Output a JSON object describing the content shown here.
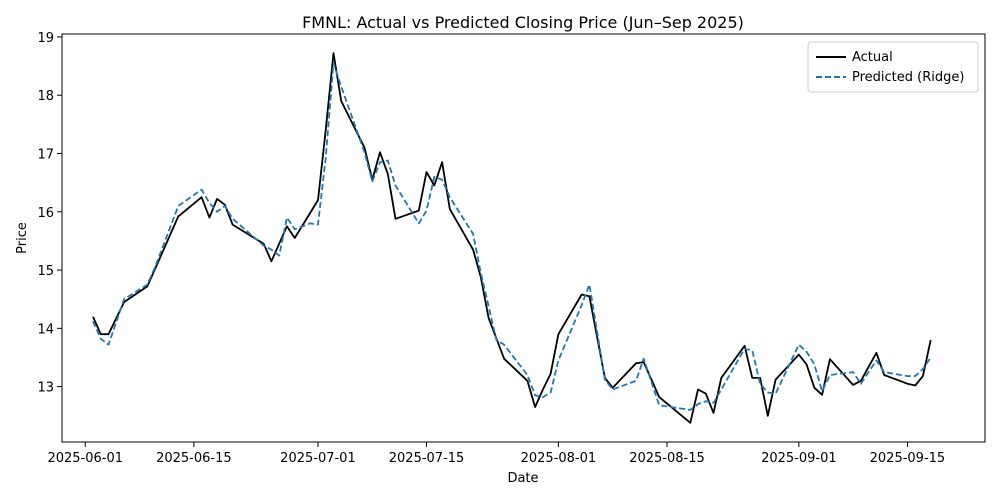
{
  "chart_data": {
    "type": "line",
    "title": "FMNL: Actual vs Predicted Closing Price (Jun–Sep 2025)",
    "xlabel": "Date",
    "ylabel": "Price",
    "x_range": [
      "2025-05-29",
      "2025-09-25"
    ],
    "ylim": [
      12.05,
      19.05
    ],
    "x_ticks": [
      "2025-06-01",
      "2025-06-15",
      "2025-07-01",
      "2025-07-15",
      "2025-08-01",
      "2025-08-15",
      "2025-09-01",
      "2025-09-15"
    ],
    "y_ticks": [
      13,
      14,
      15,
      16,
      17,
      18,
      19
    ],
    "grid": false,
    "legend_position": "top-right",
    "series": [
      {
        "name": "Actual",
        "color": "#000000",
        "style": "solid",
        "points": [
          [
            "2025-06-02",
            14.2
          ],
          [
            "2025-06-03",
            13.9
          ],
          [
            "2025-06-04",
            13.9
          ],
          [
            "2025-06-06",
            14.45
          ],
          [
            "2025-06-09",
            14.72
          ],
          [
            "2025-06-10",
            15.02
          ],
          [
            "2025-06-13",
            15.92
          ],
          [
            "2025-06-16",
            16.25
          ],
          [
            "2025-06-17",
            15.9
          ],
          [
            "2025-06-18",
            16.22
          ],
          [
            "2025-06-19",
            16.12
          ],
          [
            "2025-06-20",
            15.78
          ],
          [
            "2025-06-24",
            15.45
          ],
          [
            "2025-06-25",
            15.15
          ],
          [
            "2025-06-27",
            15.75
          ],
          [
            "2025-06-28",
            15.55
          ],
          [
            "2025-07-01",
            16.2
          ],
          [
            "2025-07-02",
            17.4
          ],
          [
            "2025-07-03",
            18.72
          ],
          [
            "2025-07-04",
            17.9
          ],
          [
            "2025-07-07",
            17.1
          ],
          [
            "2025-07-08",
            16.55
          ],
          [
            "2025-07-09",
            17.02
          ],
          [
            "2025-07-10",
            16.65
          ],
          [
            "2025-07-11",
            15.88
          ],
          [
            "2025-07-14",
            16.02
          ],
          [
            "2025-07-15",
            16.68
          ],
          [
            "2025-07-16",
            16.45
          ],
          [
            "2025-07-17",
            16.85
          ],
          [
            "2025-07-18",
            16.05
          ],
          [
            "2025-07-21",
            15.35
          ],
          [
            "2025-07-22",
            14.88
          ],
          [
            "2025-07-23",
            14.18
          ],
          [
            "2025-07-25",
            13.48
          ],
          [
            "2025-07-28",
            13.1
          ],
          [
            "2025-07-29",
            12.65
          ],
          [
            "2025-07-30",
            12.95
          ],
          [
            "2025-07-31",
            13.22
          ],
          [
            "2025-08-01",
            13.9
          ],
          [
            "2025-08-04",
            14.58
          ],
          [
            "2025-08-05",
            14.55
          ],
          [
            "2025-08-07",
            13.15
          ],
          [
            "2025-08-08",
            12.98
          ],
          [
            "2025-08-11",
            13.4
          ],
          [
            "2025-08-12",
            13.42
          ],
          [
            "2025-08-14",
            12.82
          ],
          [
            "2025-08-18",
            12.38
          ],
          [
            "2025-08-19",
            12.95
          ],
          [
            "2025-08-20",
            12.88
          ],
          [
            "2025-08-21",
            12.55
          ],
          [
            "2025-08-22",
            13.15
          ],
          [
            "2025-08-25",
            13.7
          ],
          [
            "2025-08-26",
            13.15
          ],
          [
            "2025-08-27",
            13.15
          ],
          [
            "2025-08-28",
            12.5
          ],
          [
            "2025-08-29",
            13.12
          ],
          [
            "2025-09-01",
            13.55
          ],
          [
            "2025-09-02",
            13.38
          ],
          [
            "2025-09-03",
            12.98
          ],
          [
            "2025-09-04",
            12.86
          ],
          [
            "2025-09-05",
            13.47
          ],
          [
            "2025-09-08",
            13.03
          ],
          [
            "2025-09-09",
            13.1
          ],
          [
            "2025-09-11",
            13.58
          ],
          [
            "2025-09-12",
            13.2
          ],
          [
            "2025-09-15",
            13.05
          ],
          [
            "2025-09-16",
            13.02
          ],
          [
            "2025-09-17",
            13.18
          ],
          [
            "2025-09-18",
            13.8
          ]
        ]
      },
      {
        "name": "Predicted (Ridge)",
        "color": "#1f77b4",
        "style": "dashed",
        "points": [
          [
            "2025-06-02",
            14.12
          ],
          [
            "2025-06-03",
            13.82
          ],
          [
            "2025-06-04",
            13.72
          ],
          [
            "2025-06-06",
            14.5
          ],
          [
            "2025-06-09",
            14.75
          ],
          [
            "2025-06-10",
            15.05
          ],
          [
            "2025-06-13",
            16.1
          ],
          [
            "2025-06-16",
            16.38
          ],
          [
            "2025-06-17",
            16.15
          ],
          [
            "2025-06-18",
            16.0
          ],
          [
            "2025-06-19",
            16.1
          ],
          [
            "2025-06-20",
            15.88
          ],
          [
            "2025-06-24",
            15.42
          ],
          [
            "2025-06-25",
            15.35
          ],
          [
            "2025-06-26",
            15.25
          ],
          [
            "2025-06-27",
            15.9
          ],
          [
            "2025-06-28",
            15.7
          ],
          [
            "2025-06-30",
            15.8
          ],
          [
            "2025-07-01",
            15.78
          ],
          [
            "2025-07-02",
            16.92
          ],
          [
            "2025-07-03",
            18.55
          ],
          [
            "2025-07-04",
            18.15
          ],
          [
            "2025-07-07",
            17.02
          ],
          [
            "2025-07-08",
            16.52
          ],
          [
            "2025-07-09",
            16.85
          ],
          [
            "2025-07-10",
            16.88
          ],
          [
            "2025-07-11",
            16.45
          ],
          [
            "2025-07-14",
            15.8
          ],
          [
            "2025-07-15",
            16.02
          ],
          [
            "2025-07-16",
            16.6
          ],
          [
            "2025-07-17",
            16.55
          ],
          [
            "2025-07-18",
            16.25
          ],
          [
            "2025-07-21",
            15.62
          ],
          [
            "2025-07-22",
            14.95
          ],
          [
            "2025-07-23",
            14.38
          ],
          [
            "2025-07-24",
            13.8
          ],
          [
            "2025-07-25",
            13.72
          ],
          [
            "2025-07-28",
            13.2
          ],
          [
            "2025-07-29",
            12.85
          ],
          [
            "2025-07-30",
            12.82
          ],
          [
            "2025-07-31",
            12.9
          ],
          [
            "2025-08-01",
            13.45
          ],
          [
            "2025-08-04",
            14.4
          ],
          [
            "2025-08-05",
            14.75
          ],
          [
            "2025-08-07",
            13.12
          ],
          [
            "2025-08-08",
            12.95
          ],
          [
            "2025-08-11",
            13.1
          ],
          [
            "2025-08-12",
            13.48
          ],
          [
            "2025-08-14",
            12.68
          ],
          [
            "2025-08-18",
            12.6
          ],
          [
            "2025-08-19",
            12.7
          ],
          [
            "2025-08-20",
            12.75
          ],
          [
            "2025-08-21",
            12.72
          ],
          [
            "2025-08-22",
            12.95
          ],
          [
            "2025-08-25",
            13.65
          ],
          [
            "2025-08-26",
            13.62
          ],
          [
            "2025-08-27",
            13.05
          ],
          [
            "2025-08-28",
            12.9
          ],
          [
            "2025-08-29",
            12.88
          ],
          [
            "2025-09-01",
            13.72
          ],
          [
            "2025-09-02",
            13.6
          ],
          [
            "2025-09-03",
            13.38
          ],
          [
            "2025-09-04",
            12.92
          ],
          [
            "2025-09-05",
            13.2
          ],
          [
            "2025-09-08",
            13.25
          ],
          [
            "2025-09-09",
            13.05
          ],
          [
            "2025-09-11",
            13.45
          ],
          [
            "2025-09-12",
            13.25
          ],
          [
            "2025-09-15",
            13.18
          ],
          [
            "2025-09-16",
            13.18
          ],
          [
            "2025-09-17",
            13.3
          ],
          [
            "2025-09-18",
            13.5
          ]
        ]
      }
    ]
  }
}
